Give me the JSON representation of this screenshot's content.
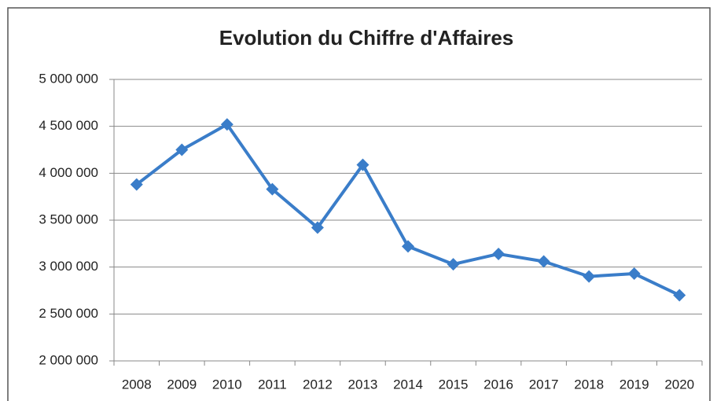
{
  "chart_data": {
    "type": "line",
    "title": "Evolution du Chiffre d'Affaires",
    "categories": [
      "2008",
      "2009",
      "2010",
      "2011",
      "2012",
      "2013",
      "2014",
      "2015",
      "2016",
      "2017",
      "2018",
      "2019",
      "2020"
    ],
    "series": [
      {
        "color": "#3a7dc9",
        "values": [
          3880000,
          4250000,
          4520000,
          3830000,
          3420000,
          4090000,
          3220000,
          3030000,
          3140000,
          3060000,
          2900000,
          2930000,
          2700000
        ]
      }
    ],
    "ylim": [
      2000000,
      5000000
    ],
    "yticks": [
      {
        "value": 2000000,
        "label": "2 000 000"
      },
      {
        "value": 2500000,
        "label": "2 500 000"
      },
      {
        "value": 3000000,
        "label": "3 000 000"
      },
      {
        "value": 3500000,
        "label": "3 500 000"
      },
      {
        "value": 4000000,
        "label": "4 000 000"
      },
      {
        "value": 4500000,
        "label": "4 500 000"
      },
      {
        "value": 5000000,
        "label": "5 000 000"
      }
    ],
    "grid": true
  }
}
